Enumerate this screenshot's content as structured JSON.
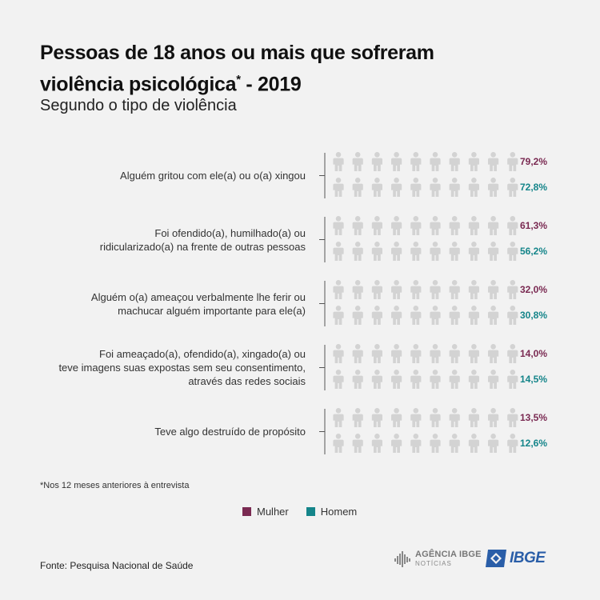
{
  "header": {
    "title_line1": "Pessoas de 18 anos ou mais que sofreram",
    "title_line2": "violência psicológica",
    "title_asterisk": "*",
    "title_year": " - 2019",
    "subtitle": "Segundo o tipo de violência"
  },
  "chart_data": {
    "type": "pictograph",
    "unit_icons_per_row": 10,
    "series": [
      {
        "name": "Mulher",
        "color": "#7a2a52"
      },
      {
        "name": "Homem",
        "color": "#15858a"
      }
    ],
    "categories": [
      {
        "label_lines": [
          "Alguém gritou com ele(a) ou o(a) xingou"
        ],
        "mulher": 79.2,
        "homem": 72.8,
        "mulher_label": "79,2%",
        "homem_label": "72,8%"
      },
      {
        "label_lines": [
          "Foi ofendido(a), humilhado(a) ou",
          "ridicularizado(a) na frente de outras pessoas"
        ],
        "mulher": 61.3,
        "homem": 56.2,
        "mulher_label": "61,3%",
        "homem_label": "56,2%"
      },
      {
        "label_lines": [
          "Alguém o(a) ameaçou verbalmente lhe ferir ou",
          "machucar alguém importante para ele(a)"
        ],
        "mulher": 32.0,
        "homem": 30.8,
        "mulher_label": "32,0%",
        "homem_label": "30,8%"
      },
      {
        "label_lines": [
          "Foi ameaçado(a), ofendido(a), xingado(a) ou",
          "teve imagens suas expostas sem seu consentimento,",
          "através das redes sociais"
        ],
        "mulher": 14.0,
        "homem": 14.5,
        "mulher_label": "14,0%",
        "homem_label": "14,5%"
      },
      {
        "label_lines": [
          "Teve algo destruído de propósito"
        ],
        "mulher": 13.5,
        "homem": 12.6,
        "mulher_label": "13,5%",
        "homem_label": "12,6%"
      }
    ],
    "empty_icon_color": "#d3d3d3"
  },
  "footnote": "*Nos 12 meses anteriores à entrevista",
  "legend": {
    "mulher": "Mulher",
    "homem": "Homem"
  },
  "source": "Fonte: Pesquisa Nacional de Saúde",
  "logos": {
    "agencia_line1": "AGÊNCIA IBGE",
    "agencia_line2": "NOTÍCIAS",
    "ibge": "IBGE"
  }
}
